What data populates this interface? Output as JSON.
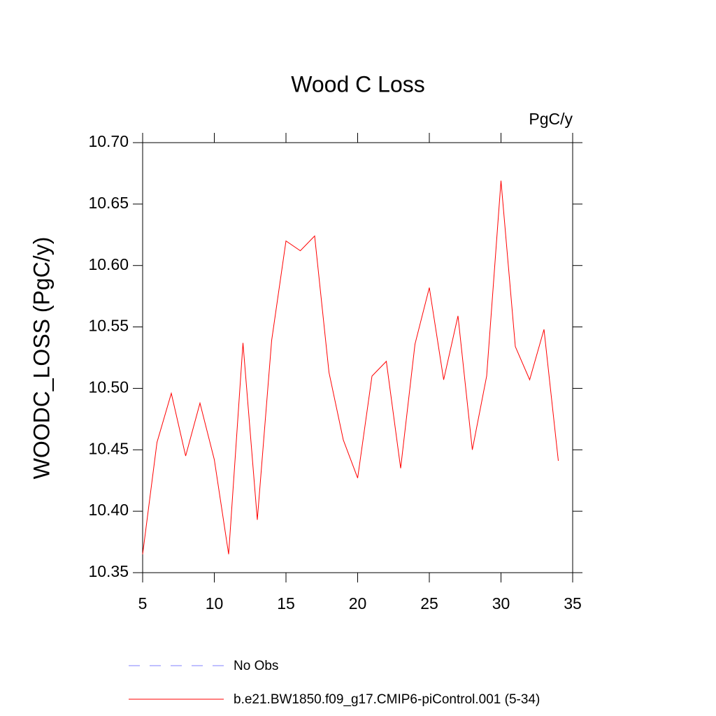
{
  "chart_data": {
    "type": "line",
    "title": "Wood C Loss",
    "units_label": "PgC/y",
    "ylabel": "WOODC_LOSS  (PgC/y)",
    "x": [
      5,
      6,
      7,
      8,
      9,
      10,
      11,
      12,
      13,
      14,
      15,
      16,
      17,
      18,
      19,
      20,
      21,
      22,
      23,
      24,
      25,
      26,
      27,
      28,
      29,
      30,
      31,
      32,
      33,
      34
    ],
    "series": [
      {
        "name": "b.e21.BW1850.f09_g17.CMIP6-piControl.001 (5-34)",
        "color": "#ff0000",
        "values": [
          10.365,
          10.456,
          10.496,
          10.445,
          10.488,
          10.442,
          10.365,
          10.537,
          10.393,
          10.539,
          10.62,
          10.612,
          10.624,
          10.513,
          10.458,
          10.427,
          10.51,
          10.522,
          10.435,
          10.536,
          10.582,
          10.507,
          10.559,
          10.45,
          10.51,
          10.669,
          10.534,
          10.507,
          10.548,
          10.441
        ]
      }
    ],
    "reference": {
      "name": "No Obs",
      "color": "#8080ff",
      "dash": "dashed"
    },
    "xlim": [
      5,
      35
    ],
    "xticks": [
      5,
      10,
      15,
      20,
      25,
      30,
      35
    ],
    "ylim": [
      10.35,
      10.7
    ],
    "yticks": [
      {
        "value": 10.35,
        "label": "10.35"
      },
      {
        "value": 10.4,
        "label": "10.40"
      },
      {
        "value": 10.45,
        "label": "10.45"
      },
      {
        "value": 10.5,
        "label": "10.50"
      },
      {
        "value": 10.55,
        "label": "10.55"
      },
      {
        "value": 10.6,
        "label": "10.60"
      },
      {
        "value": 10.65,
        "label": "10.65"
      },
      {
        "value": 10.7,
        "label": "10.70"
      }
    ],
    "grid": false
  }
}
